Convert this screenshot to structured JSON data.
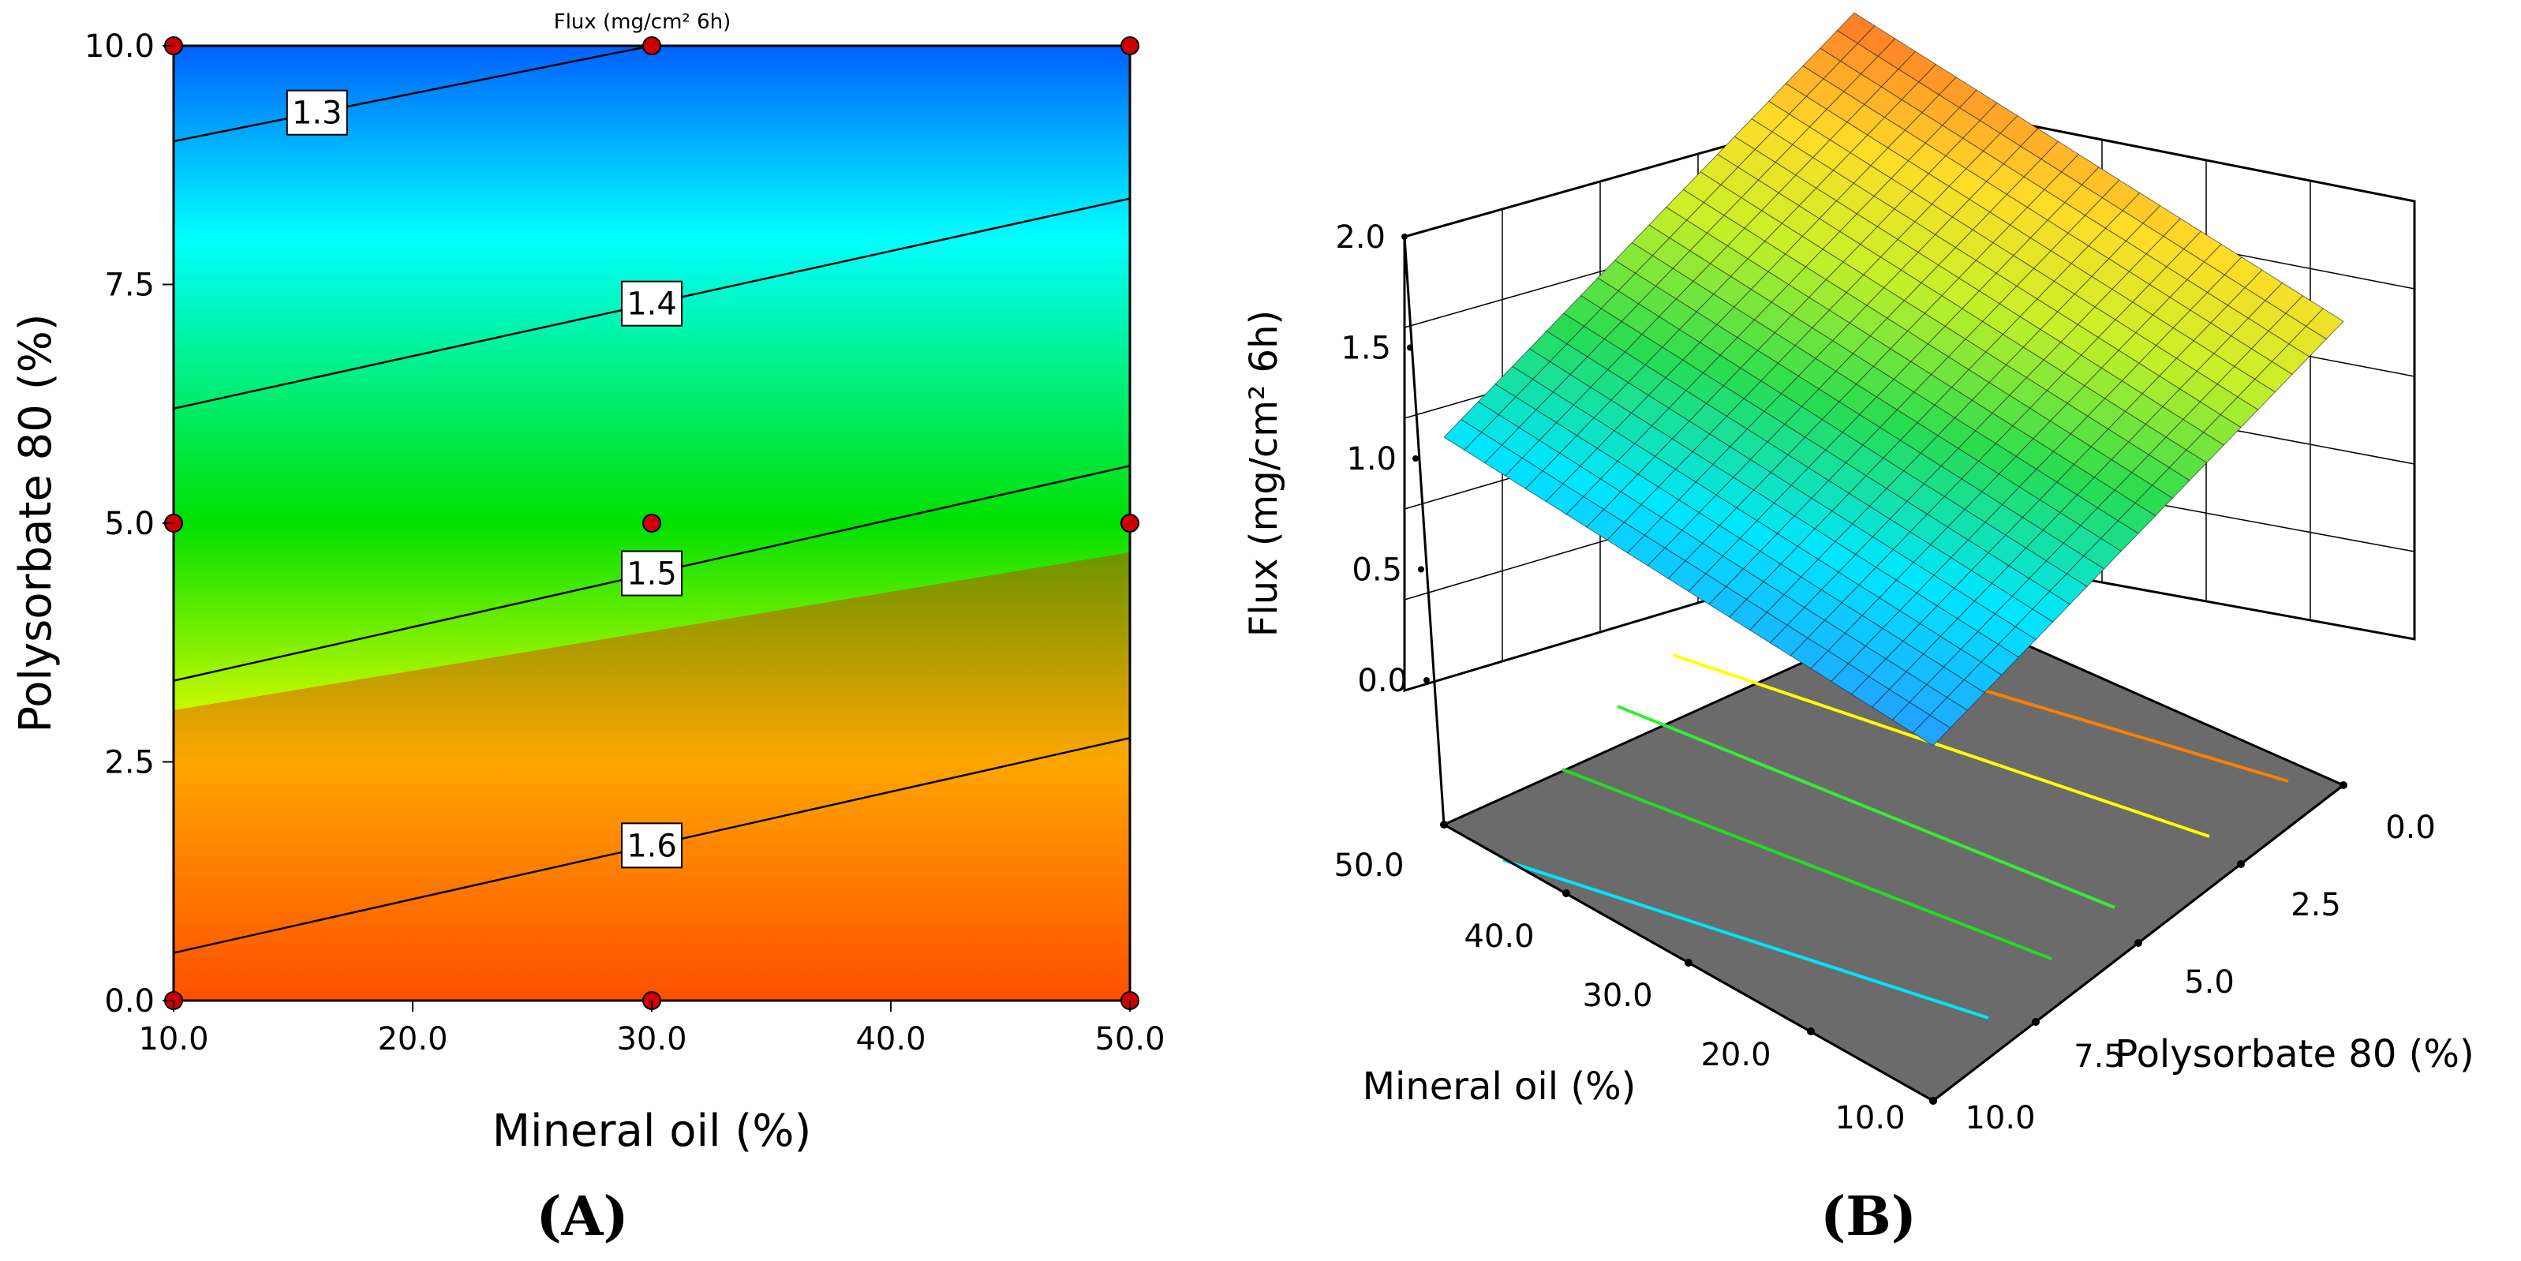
{
  "chart_data": [
    {
      "id": "A",
      "type": "contour",
      "panel_label": "(A)",
      "title": "Flux (mg/cm²  6h)",
      "xlabel": "Mineral oil (%)",
      "ylabel": "Polysorbate 80 (%)",
      "xlim": [
        10,
        50
      ],
      "ylim": [
        0,
        10
      ],
      "x_ticks": [
        "10.0",
        "20.0",
        "30.0",
        "40.0",
        "50.0"
      ],
      "y_ticks": [
        "0.0",
        "2.5",
        "5.0",
        "7.5",
        "10.0"
      ],
      "contours": [
        {
          "level": "1.3",
          "label_x": 16,
          "points": [
            [
              10,
              9.0
            ],
            [
              30,
              10.0
            ]
          ]
        },
        {
          "level": "1.4",
          "label_x": 30,
          "points": [
            [
              10,
              6.2
            ],
            [
              50,
              8.4
            ]
          ]
        },
        {
          "level": "1.5",
          "label_x": 30,
          "points": [
            [
              10,
              3.35
            ],
            [
              50,
              5.6
            ]
          ]
        },
        {
          "level": "1.6",
          "label_x": 30,
          "points": [
            [
              10,
              0.5
            ],
            [
              50,
              2.75
            ]
          ]
        }
      ],
      "design_points": [
        [
          10,
          0
        ],
        [
          30,
          0
        ],
        [
          50,
          0
        ],
        [
          10,
          5
        ],
        [
          30,
          5
        ],
        [
          50,
          5
        ],
        [
          10,
          10
        ],
        [
          30,
          10
        ],
        [
          50,
          10
        ]
      ],
      "colormap": [
        "#ff0000",
        "#ff8800",
        "#ffff00",
        "#00e000",
        "#00ffff",
        "#0060ff"
      ]
    },
    {
      "id": "B",
      "type": "surface3d",
      "panel_label": "(B)",
      "zlabel": "Flux (mg/cm²  6h)",
      "xlabel": "Mineral oil (%)",
      "ylabel": "Polysorbate 80 (%)",
      "z_ticks": [
        "0.0",
        "0.5",
        "1.0",
        "1.5",
        "2.0"
      ],
      "x_ticks": [
        "10.0",
        "20.0",
        "30.0",
        "40.0",
        "50.0"
      ],
      "y_ticks": [
        "0.0",
        "2.5",
        "5.0",
        "7.5",
        "10.0"
      ],
      "zlim": [
        0,
        2
      ],
      "surface": {
        "mineral_oil": [
          10,
          50
        ],
        "polysorbate": [
          0,
          10
        ],
        "flux_corners": {
          "mo10_ps0": 1.58,
          "mo50_ps0": 1.69,
          "mo10_ps10": 1.21,
          "mo50_ps10": 1.32
        }
      },
      "contour_lines": [
        {
          "level": 1.3,
          "color": "#00e5ff"
        },
        {
          "level": 1.4,
          "color": "#22dd22"
        },
        {
          "level": 1.5,
          "color": "#33ee33"
        },
        {
          "level": 1.6,
          "color": "#ffff00"
        },
        {
          "level": 1.7,
          "color": "#ff7f00"
        }
      ]
    }
  ]
}
